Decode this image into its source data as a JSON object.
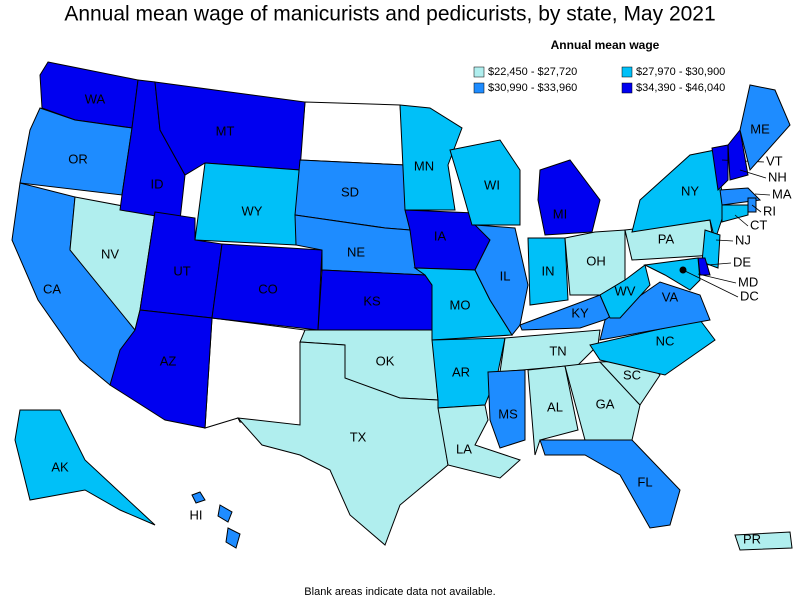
{
  "title": "Annual mean wage of manicurists and pedicurists, by state, May 2021",
  "legend": {
    "title": "Annual mean wage",
    "items": [
      {
        "label": "$22,450 - $27,720",
        "color": "#b0eeee"
      },
      {
        "label": "$27,970 - $30,900",
        "color": "#00c0f8"
      },
      {
        "label": "$30,990 - $33,960",
        "color": "#1e8cff"
      },
      {
        "label": "$34,390 - $46,040",
        "color": "#0000f0"
      }
    ]
  },
  "states": [
    {
      "label": "WA",
      "range": 3
    },
    {
      "label": "OR",
      "range": 2
    },
    {
      "label": "CA",
      "range": 2
    },
    {
      "label": "NV",
      "range": 0
    },
    {
      "label": "ID",
      "range": 3
    },
    {
      "label": "MT",
      "range": 3
    },
    {
      "label": "WY",
      "range": 1
    },
    {
      "label": "UT",
      "range": 3
    },
    {
      "label": "CO",
      "range": 3
    },
    {
      "label": "AZ",
      "range": 3
    },
    {
      "label": "SD",
      "range": 2
    },
    {
      "label": "NE",
      "range": 2
    },
    {
      "label": "KS",
      "range": 3
    },
    {
      "label": "OK",
      "range": 0
    },
    {
      "label": "TX",
      "range": 0
    },
    {
      "label": "MN",
      "range": 1
    },
    {
      "label": "IA",
      "range": 3
    },
    {
      "label": "MO",
      "range": 1
    },
    {
      "label": "AR",
      "range": 1
    },
    {
      "label": "LA",
      "range": 0
    },
    {
      "label": "WI",
      "range": 1
    },
    {
      "label": "IL",
      "range": 2
    },
    {
      "label": "MI",
      "range": 3
    },
    {
      "label": "IN",
      "range": 1
    },
    {
      "label": "OH",
      "range": 0
    },
    {
      "label": "KY",
      "range": 2
    },
    {
      "label": "TN",
      "range": 0
    },
    {
      "label": "MS",
      "range": 2
    },
    {
      "label": "AL",
      "range": 0
    },
    {
      "label": "GA",
      "range": 0
    },
    {
      "label": "FL",
      "range": 2
    },
    {
      "label": "SC",
      "range": 0
    },
    {
      "label": "NC",
      "range": 1
    },
    {
      "label": "VA",
      "range": 2
    },
    {
      "label": "WV",
      "range": 1
    },
    {
      "label": "PA",
      "range": 0
    },
    {
      "label": "NY",
      "range": 1
    },
    {
      "label": "VT",
      "range": 3
    },
    {
      "label": "NH",
      "range": 3
    },
    {
      "label": "ME",
      "range": 2
    },
    {
      "label": "MA",
      "range": 2
    },
    {
      "label": "RI",
      "range": 2
    },
    {
      "label": "CT",
      "range": 1
    },
    {
      "label": "NJ",
      "range": 1
    },
    {
      "label": "DE",
      "range": 3
    },
    {
      "label": "MD",
      "range": 1
    },
    {
      "label": "DC",
      "range": 1
    },
    {
      "label": "AK",
      "range": 1
    },
    {
      "label": "HI",
      "range": 2
    },
    {
      "label": "PR",
      "range": 0
    }
  ],
  "footnote": "Blank areas indicate data not available."
}
